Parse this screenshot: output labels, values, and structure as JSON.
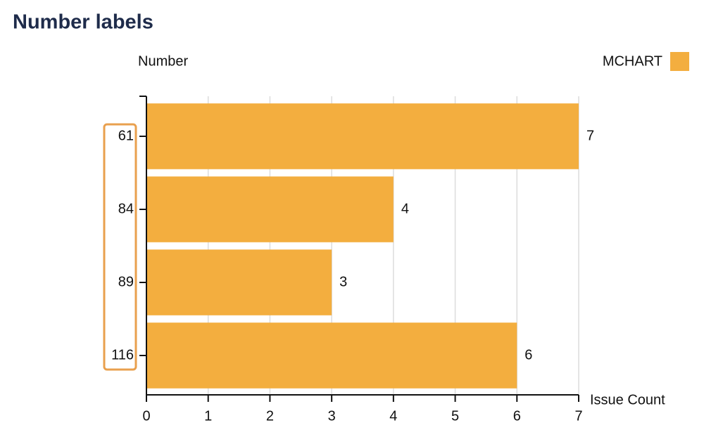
{
  "chart_data": {
    "type": "hbar",
    "title": "Number labels",
    "y_label": "Number",
    "x_label": "Issue Count",
    "categories": [
      "61",
      "84",
      "89",
      "116"
    ],
    "series": [
      {
        "name": "MCHART",
        "color": "#f3ae3f",
        "values": [
          7,
          4,
          3,
          6
        ]
      }
    ],
    "xlim": [
      0,
      7
    ],
    "xticks": [
      0,
      1,
      2,
      3,
      4,
      5,
      6,
      7
    ],
    "grid": true,
    "legend": "top-right"
  }
}
